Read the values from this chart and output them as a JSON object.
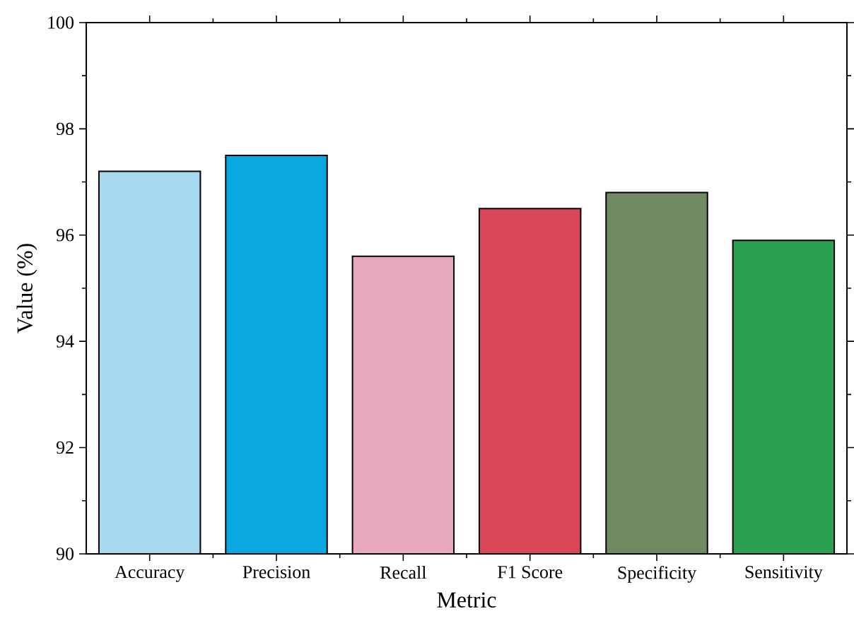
{
  "chart_data": {
    "type": "bar",
    "xlabel": "Metric",
    "ylabel": "Value (%)",
    "categories": [
      "Accuracy",
      "Precision",
      "Recall",
      "F1 Score",
      "Specificity",
      "Sensitivity"
    ],
    "values": [
      97.2,
      97.5,
      95.6,
      96.5,
      96.8,
      95.9
    ],
    "colors": [
      "#a6d8f0",
      "#0aa8e0",
      "#e8a8c0",
      "#d84858",
      "#6f8a60",
      "#2aa050"
    ],
    "ylim": [
      90,
      100
    ],
    "yticks": [
      90,
      92,
      94,
      96,
      98,
      100
    ]
  }
}
